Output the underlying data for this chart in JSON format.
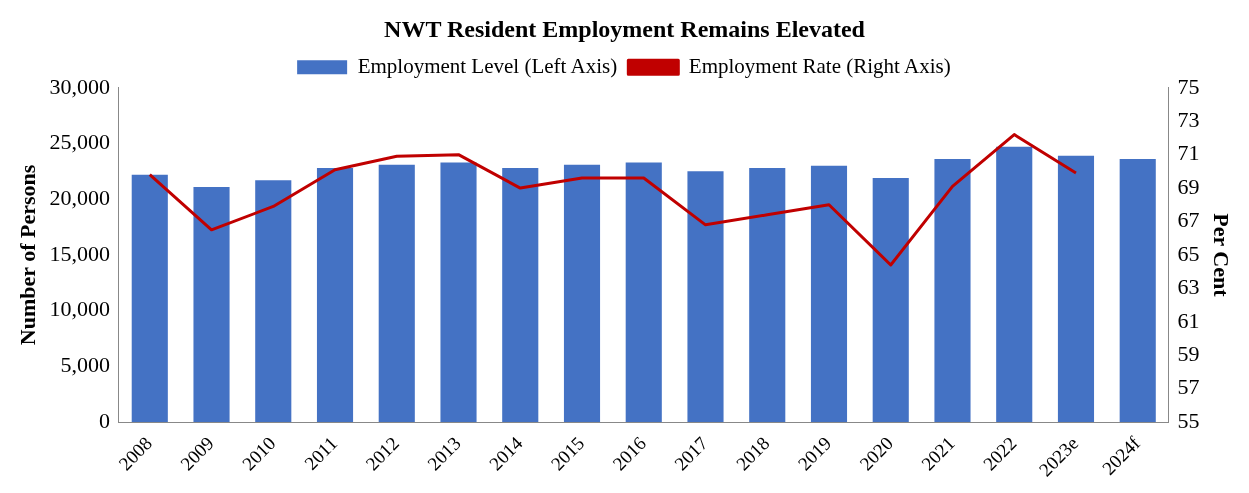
{
  "chart_data": {
    "type": "bar",
    "title": "NWT Resident Employment Remains Elevated",
    "ylabel": "Number of Persons",
    "y2label": "Per Cent",
    "categories": [
      "2008",
      "2009",
      "2010",
      "2011",
      "2012",
      "2013",
      "2014",
      "2015",
      "2016",
      "2017",
      "2018",
      "2019",
      "2020",
      "2021",
      "2022",
      "2023e",
      "2024f"
    ],
    "series": [
      {
        "name": "Employment Level (Left Axis)",
        "color": "#4472c4",
        "values": [
          22200,
          21100,
          21700,
          22800,
          23100,
          23300,
          22800,
          23100,
          23300,
          22500,
          22800,
          23000,
          21900,
          23600,
          24700,
          23900,
          23600
        ]
      },
      {
        "name": "Employment Rate (Right Axis)",
        "type": "line",
        "axis": "y2",
        "color": "#c00000",
        "values": [
          69.8,
          66.5,
          67.9,
          70.1,
          70.9,
          71.0,
          69.0,
          69.6,
          69.6,
          66.8,
          67.4,
          68.0,
          64.4,
          69.1,
          72.2,
          69.9,
          null
        ]
      }
    ],
    "ylim": [
      0,
      30000
    ],
    "yticks": [
      {
        "value": 0,
        "label": "0"
      },
      {
        "value": 5000,
        "label": "5,000"
      },
      {
        "value": 10000,
        "label": "10,000"
      },
      {
        "value": 15000,
        "label": "15,000"
      },
      {
        "value": 20000,
        "label": "20,000"
      },
      {
        "value": 25000,
        "label": "25,000"
      },
      {
        "value": 30000,
        "label": "30,000"
      }
    ],
    "y2lim": [
      55,
      75
    ],
    "y2ticks": [
      55,
      57,
      59,
      61,
      63,
      65,
      67,
      69,
      71,
      73,
      75
    ],
    "grid": false,
    "legend": "top",
    "marker": "none"
  }
}
